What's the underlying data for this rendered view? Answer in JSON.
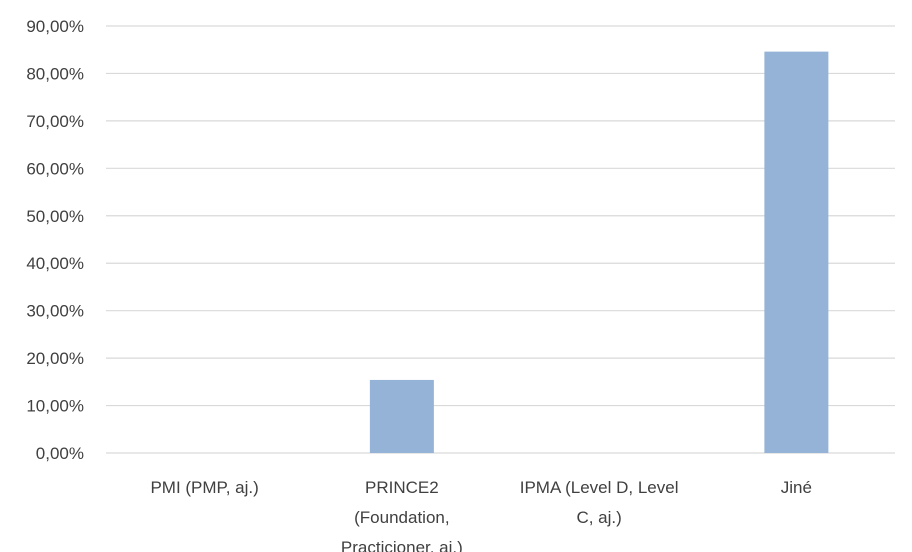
{
  "chart_data": {
    "type": "bar",
    "categories": [
      [
        "PMI (PMP, aj.)"
      ],
      [
        "PRINCE2",
        "(Foundation,",
        "Practicioner, aj.)"
      ],
      [
        "IPMA (Level D, Level",
        "C, aj.)"
      ],
      [
        "Jiné"
      ]
    ],
    "values": [
      0,
      15.4,
      0,
      84.6
    ],
    "ylim": [
      0,
      90
    ],
    "yticks": [
      0,
      10,
      20,
      30,
      40,
      50,
      60,
      70,
      80,
      90
    ],
    "ytick_labels": [
      "0,00%",
      "10,00%",
      "20,00%",
      "30,00%",
      "40,00%",
      "50,00%",
      "60,00%",
      "70,00%",
      "80,00%",
      "90,00%"
    ],
    "grid": true,
    "bar_color": "#95b3d7",
    "grid_color": "#d9d9d9",
    "title": "",
    "xlabel": "",
    "ylabel": ""
  }
}
